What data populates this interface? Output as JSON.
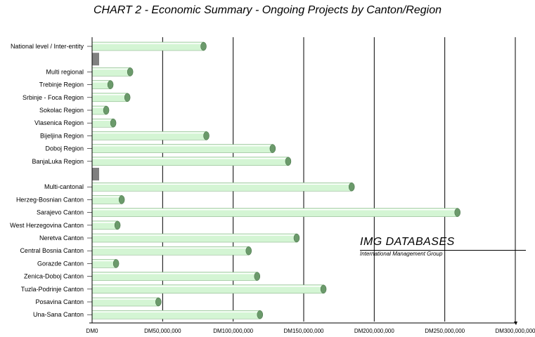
{
  "chart_data": {
    "type": "bar",
    "orientation": "horizontal",
    "title": "CHART 2 - Economic Summary - Ongoing Projects by Canton/Region",
    "xlim": [
      0,
      300000000
    ],
    "x_ticks": [
      "DM0",
      "DM50,000,000",
      "DM100,000,000",
      "DM150,000,000",
      "DM200,000,000",
      "DM250,000,000",
      "DM300,000,000"
    ],
    "grid": true,
    "bar_color": "#d4f5d4",
    "bar_end_color": "#6b9a6b",
    "separator_color": "#808080",
    "categories": [
      "National level / Inter-entity",
      "",
      "Multi regional",
      "Trebinje Region",
      "Srbinje - Foca Region",
      "Sokolac Region",
      "Vlasenica Region",
      "Bijeljina Region",
      "Doboj Region",
      "BanjaLuka Region",
      "",
      "Multi-cantonal",
      "Herzeg-Bosnian Canton",
      "Sarajevo Canton",
      "West Herzegovina Canton",
      "Neretva Canton",
      "Central Bosnia Canton",
      "Gorazde Canton",
      "Zenica-Doboj Canton",
      "Tuzla-Podrinje Canton",
      "Posavina Canton",
      "Una-Sana Canton"
    ],
    "values": [
      79000000,
      null,
      27000000,
      13000000,
      25000000,
      10000000,
      15000000,
      81000000,
      128000000,
      139000000,
      null,
      184000000,
      21000000,
      259000000,
      18000000,
      145000000,
      111000000,
      17000000,
      117000000,
      164000000,
      47000000,
      119000000
    ]
  },
  "watermark": {
    "title": "IMG DATABASES",
    "subtitle": "International Management Group"
  }
}
